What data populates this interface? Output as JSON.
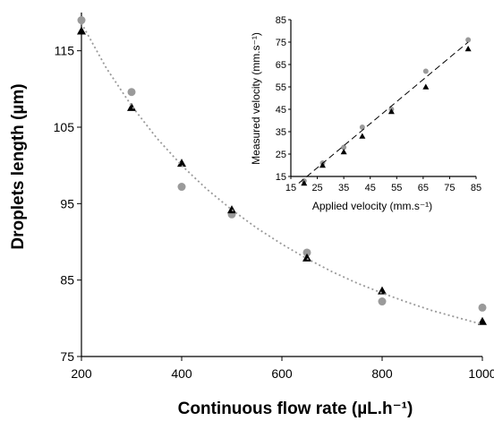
{
  "chart_data": [
    {
      "type": "scatter",
      "title": "",
      "xlabel": "Continuous flow rate (µL.h⁻¹)",
      "ylabel": "Droplets length (µm)",
      "x_ticks": [
        "200",
        "400",
        "600",
        "800",
        "1000"
      ],
      "y_ticks": [
        "75",
        "85",
        "95",
        "105",
        "115"
      ],
      "xlim": [
        200,
        1000
      ],
      "ylim": [
        75,
        120
      ],
      "grid": false,
      "series": [
        {
          "marker": "circle",
          "color": "#9a9a9a",
          "x": [
            200,
            300,
            400,
            500,
            650,
            800,
            1000
          ],
          "y": [
            119.0,
            109.6,
            97.2,
            93.6,
            88.6,
            82.2,
            81.4
          ]
        },
        {
          "marker": "triangle",
          "color": "#000000",
          "x": [
            200,
            300,
            400,
            500,
            650,
            800,
            1000
          ],
          "y": [
            117.6,
            107.6,
            100.3,
            94.2,
            87.9,
            83.6,
            79.6
          ]
        },
        {
          "style": "dotted-fit",
          "color": "#9a9a9a",
          "x": [
            200,
            250,
            300,
            350,
            400,
            450,
            500,
            550,
            600,
            650,
            700,
            750,
            800,
            850,
            900,
            950,
            1000
          ],
          "y": [
            118.6,
            112.7,
            107.8,
            103.6,
            100.0,
            96.9,
            94.2,
            91.8,
            89.7,
            87.8,
            86.1,
            84.6,
            83.3,
            82.1,
            81.0,
            80.1,
            79.2
          ]
        }
      ]
    },
    {
      "type": "scatter",
      "title": "",
      "xlabel": "Applied velocity (mm.s⁻¹)",
      "ylabel": "Measured velocity (mm.s⁻¹)",
      "x_ticks": [
        "15",
        "25",
        "35",
        "45",
        "55",
        "65",
        "75",
        "85"
      ],
      "y_ticks": [
        "15",
        "25",
        "35",
        "45",
        "55",
        "65",
        "75",
        "85"
      ],
      "xlim": [
        15,
        85
      ],
      "ylim": [
        15,
        85
      ],
      "grid": false,
      "series": [
        {
          "marker": "circle",
          "color": "#9a9a9a",
          "x": [
            20,
            27,
            35,
            42,
            53,
            66,
            82
          ],
          "y": [
            13,
            21,
            28,
            37,
            45,
            62,
            76
          ]
        },
        {
          "marker": "triangle",
          "color": "#000000",
          "x": [
            20,
            27,
            35,
            42,
            53,
            66,
            82
          ],
          "y": [
            12,
            20,
            26,
            33,
            44,
            55,
            72
          ]
        },
        {
          "style": "dashed-fit",
          "color": "#000000",
          "x": [
            18,
            82
          ],
          "y": [
            12,
            75
          ]
        }
      ]
    }
  ]
}
